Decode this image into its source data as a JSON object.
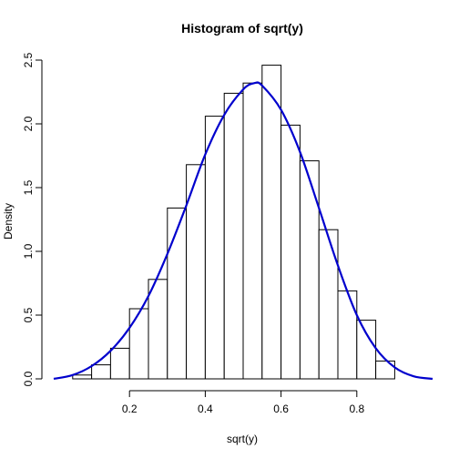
{
  "chart_data": {
    "type": "bar",
    "title": "Histogram of sqrt(y)",
    "xlabel": "sqrt(y)",
    "ylabel": "Density",
    "bin_edges": [
      0.05,
      0.1,
      0.15,
      0.2,
      0.25,
      0.3,
      0.35,
      0.4,
      0.45,
      0.5,
      0.55,
      0.6,
      0.65,
      0.7,
      0.75,
      0.8,
      0.85,
      0.9
    ],
    "values": [
      0.03,
      0.11,
      0.24,
      0.55,
      0.78,
      1.34,
      1.68,
      2.06,
      2.24,
      2.32,
      2.46,
      1.99,
      1.71,
      1.17,
      0.69,
      0.46,
      0.14
    ],
    "xlim": [
      0.0,
      1.0
    ],
    "ylim": [
      0.0,
      2.5
    ],
    "x_ticks": [
      0.2,
      0.4,
      0.6,
      0.8
    ],
    "y_ticks": [
      0.0,
      0.5,
      1.0,
      1.5,
      2.0,
      2.5
    ],
    "x_tick_labels": [
      "0.2",
      "0.4",
      "0.6",
      "0.8"
    ],
    "y_tick_labels": [
      "0.0",
      "0.5",
      "1.0",
      "1.5",
      "2.0",
      "2.5"
    ],
    "density_curve": {
      "x": [
        0.0,
        0.05,
        0.1,
        0.15,
        0.2,
        0.25,
        0.3,
        0.35,
        0.4,
        0.45,
        0.5,
        0.53,
        0.55,
        0.6,
        0.65,
        0.7,
        0.75,
        0.8,
        0.85,
        0.9,
        0.95,
        1.0
      ],
      "y": [
        0.0,
        0.03,
        0.1,
        0.22,
        0.4,
        0.65,
        0.98,
        1.36,
        1.76,
        2.07,
        2.27,
        2.32,
        2.3,
        2.11,
        1.78,
        1.34,
        0.89,
        0.5,
        0.24,
        0.09,
        0.02,
        0.0
      ],
      "color": "#0000cd"
    },
    "grid": false,
    "legend": "none"
  }
}
